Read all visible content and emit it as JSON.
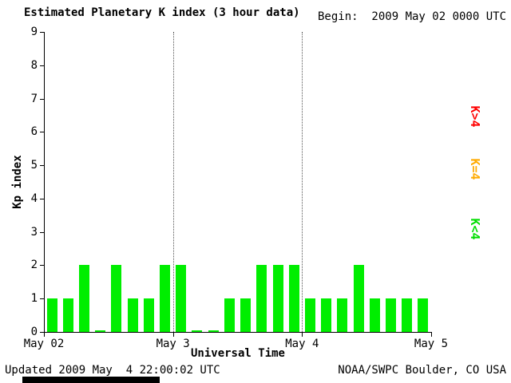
{
  "title": "Estimated Planetary K index (3 hour data)",
  "begin_label": "Begin:  2009 May 02 0000 UTC",
  "updated_label": "Updated 2009 May  4 22:00:02 UTC",
  "source_label": "NOAA/SWPC Boulder, CO USA",
  "chart_data": {
    "type": "bar",
    "title": "Estimated Planetary K index (3 hour data)",
    "xlabel": "Universal Time",
    "ylabel": "Kp index",
    "ylim": [
      0,
      9
    ],
    "yticks": [
      0,
      1,
      2,
      3,
      4,
      5,
      6,
      7,
      8,
      9
    ],
    "xticks": [
      "May 02",
      "May 3",
      "May 4",
      "May 5"
    ],
    "begin": "2009 May 02 0000 UTC",
    "bar_interval_hours": 3,
    "bars_per_day": 8,
    "values": [
      1,
      1,
      2,
      0,
      2,
      1,
      1,
      2,
      2,
      0,
      0,
      1,
      1,
      2,
      2,
      2,
      1,
      1,
      1,
      2,
      1,
      1,
      1,
      1
    ],
    "bar_color": "#00EE00",
    "grid": "dotted vertical lines at interior day boundaries",
    "legend_position": "right, rotated 90deg",
    "legend": [
      {
        "label": "K>4",
        "color": "#FF0000"
      },
      {
        "label": "K=4",
        "color": "#FFAA00"
      },
      {
        "label": "K<4",
        "color": "#00DD00"
      }
    ]
  }
}
